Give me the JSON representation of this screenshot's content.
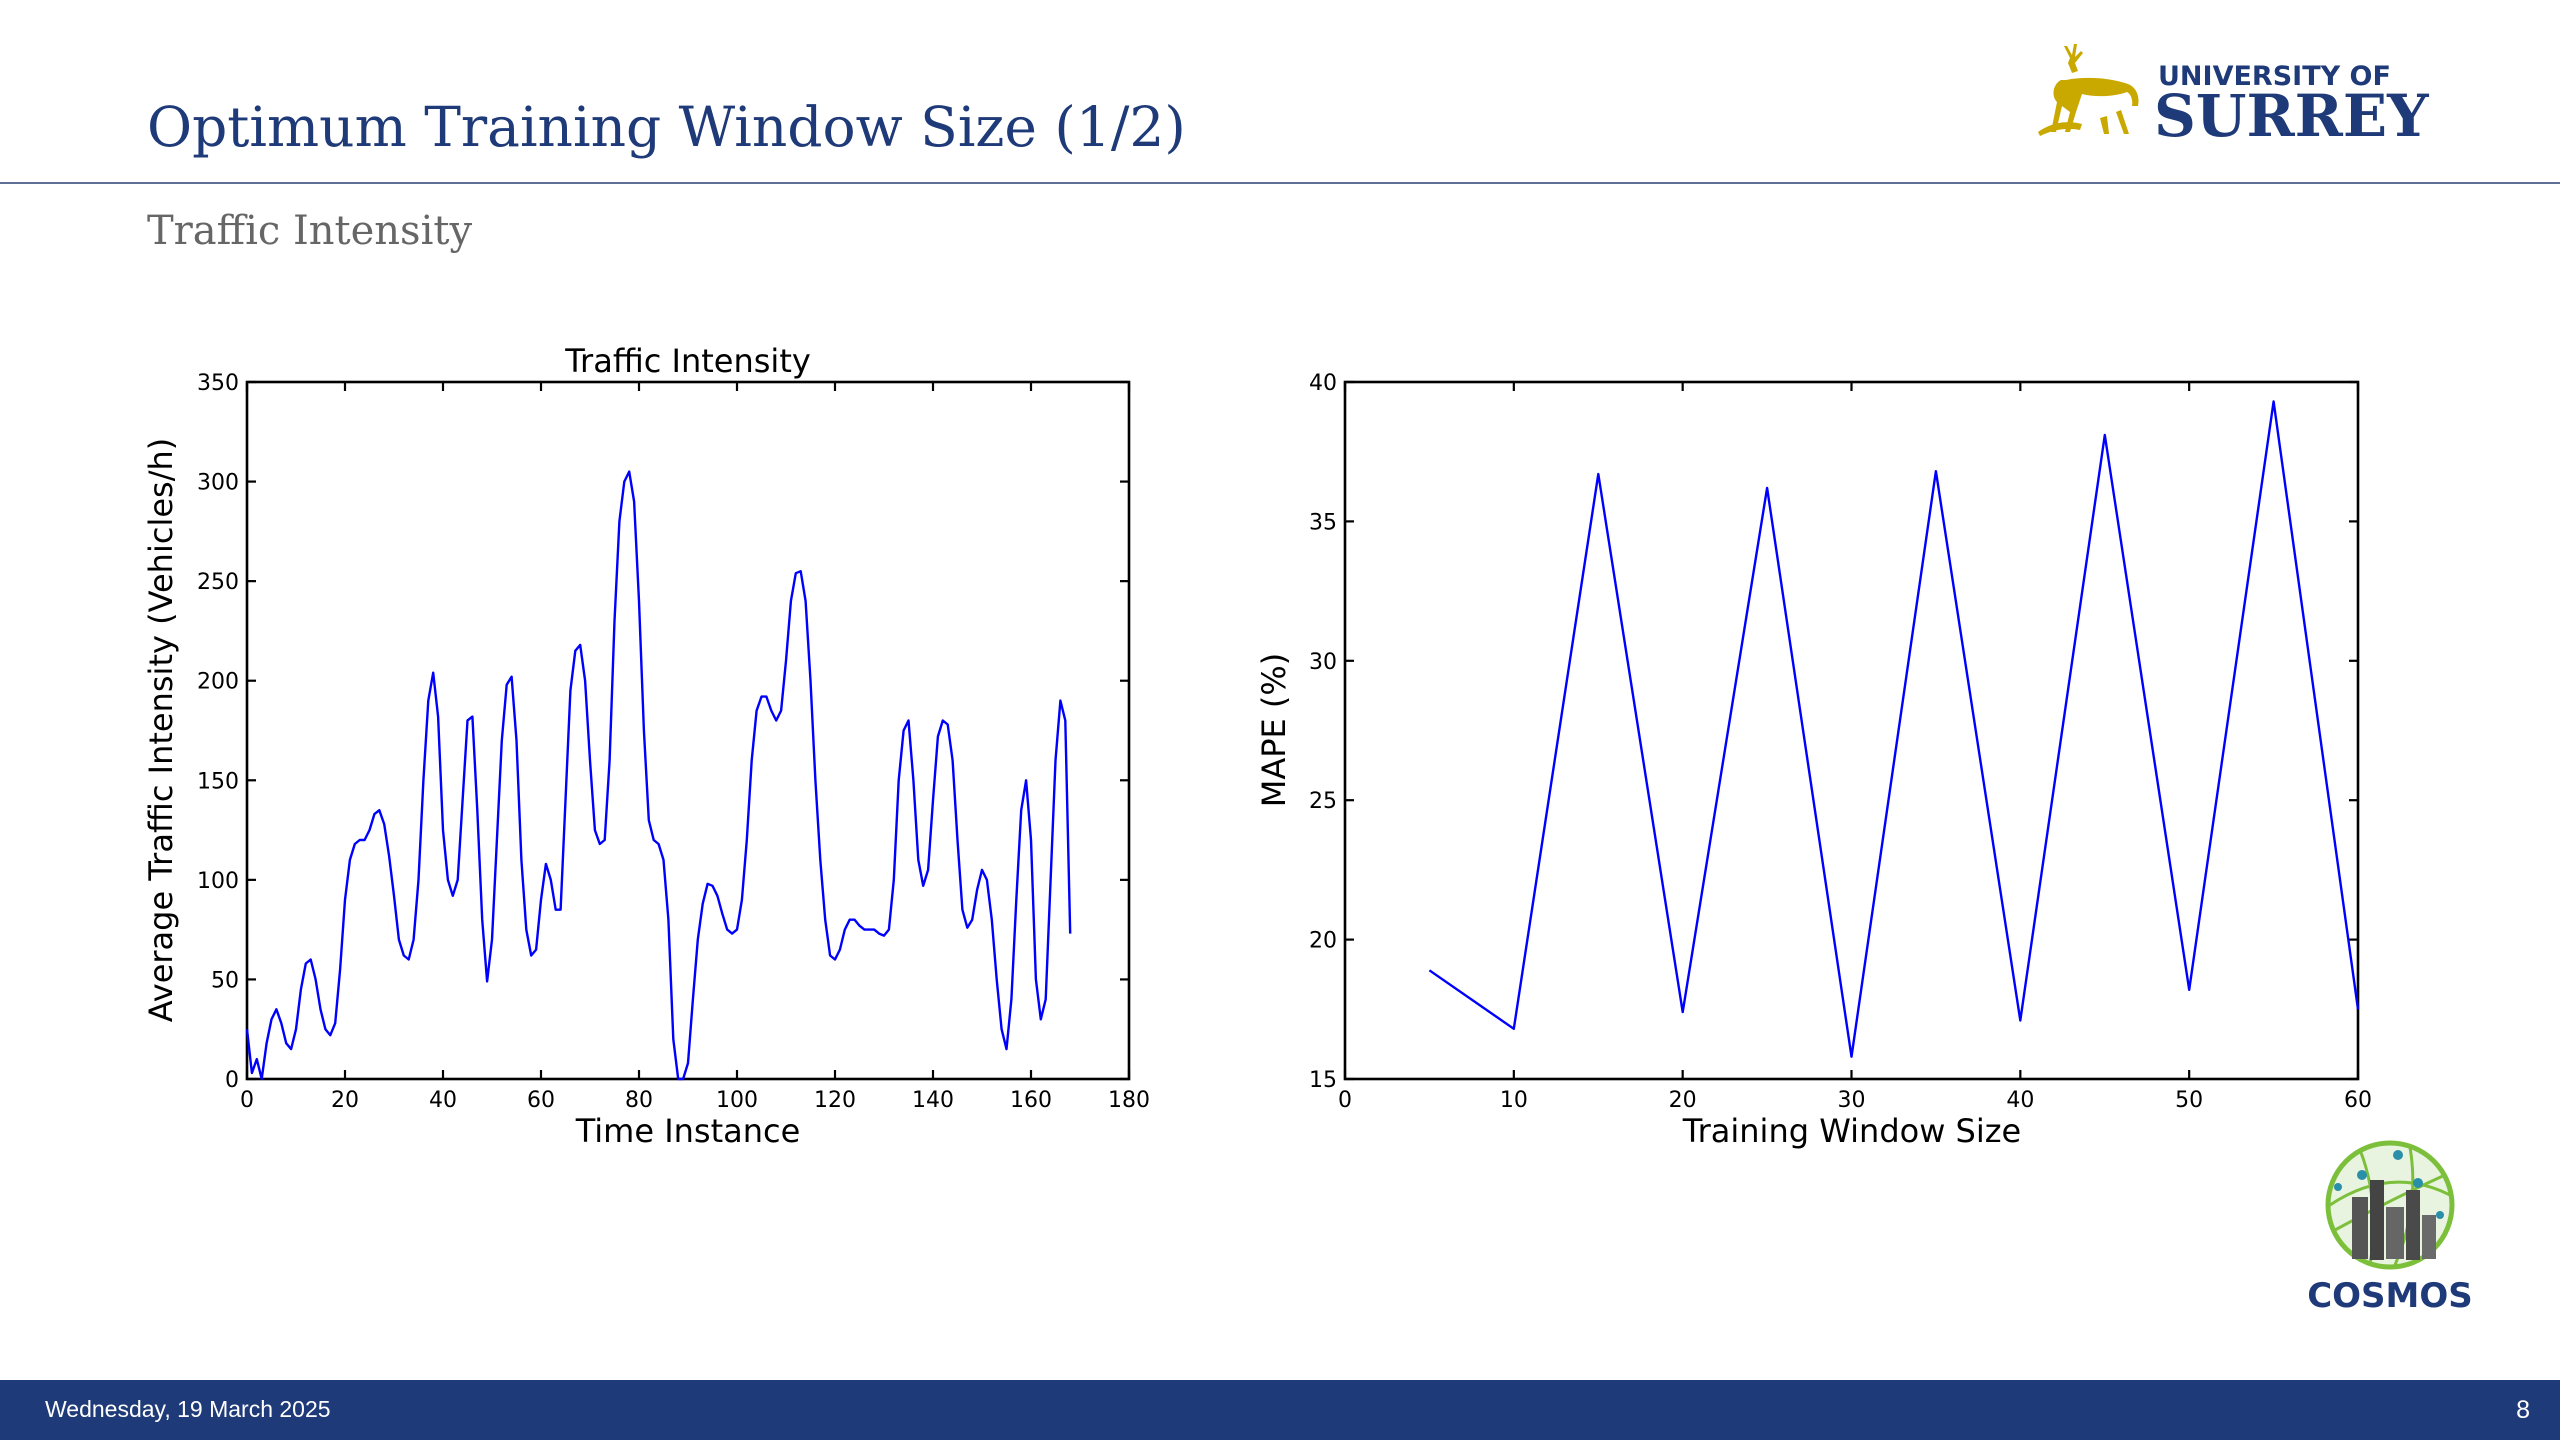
{
  "slide": {
    "title": "Optimum Training Window Size (1/2)",
    "subtitle": "Traffic Intensity"
  },
  "logos": {
    "surrey": {
      "line1": "UNIVERSITY OF",
      "line2": "SURREY",
      "color_blue": "#1f3a78",
      "color_gold": "#c9a800"
    },
    "cosmos": {
      "text": "COSMOS"
    }
  },
  "footer": {
    "date": "Wednesday, 19 March 2025",
    "page": "8",
    "bar_color": "#1f3a78"
  },
  "chart_data": [
    {
      "type": "line",
      "title": "Traffic Intensity",
      "xlabel": "Time Instance",
      "ylabel": "Average Traffic Intensity (Vehicles/h)",
      "xlim": [
        0,
        180
      ],
      "ylim": [
        0,
        350
      ],
      "xticks": [
        0,
        20,
        40,
        60,
        80,
        100,
        120,
        140,
        160,
        180
      ],
      "yticks": [
        0,
        50,
        100,
        150,
        200,
        250,
        300,
        350
      ],
      "line_color": "#0000ff",
      "series": [
        {
          "x": [
            0,
            1,
            2,
            3,
            4,
            5,
            6,
            7,
            8,
            9,
            10,
            11,
            12,
            13,
            14,
            15,
            16,
            17,
            18,
            19,
            20,
            21,
            22,
            23,
            24,
            25,
            26,
            27,
            28,
            29,
            30,
            31,
            32,
            33,
            34,
            35,
            36,
            37,
            38,
            39,
            40,
            41,
            42,
            43,
            44,
            45,
            46,
            47,
            48,
            49,
            50,
            51,
            52,
            53,
            54,
            55,
            56,
            57,
            58,
            59,
            60,
            61,
            62,
            63,
            64,
            65,
            66,
            67,
            68,
            69,
            70,
            71,
            72,
            73,
            74,
            75,
            76,
            77,
            78,
            79,
            80,
            81,
            82,
            83,
            84,
            85,
            86,
            87,
            88,
            89,
            90,
            91,
            92,
            93,
            94,
            95,
            96,
            97,
            98,
            99,
            100,
            101,
            102,
            103,
            104,
            105,
            106,
            107,
            108,
            109,
            110,
            111,
            112,
            113,
            114,
            115,
            116,
            117,
            118,
            119,
            120,
            121,
            122,
            123,
            124,
            125,
            126,
            127,
            128,
            129,
            130,
            131,
            132,
            133,
            134,
            135,
            136,
            137,
            138,
            139,
            140,
            141,
            142,
            143,
            144,
            145,
            146,
            147,
            148,
            149,
            150,
            151,
            152,
            153,
            154,
            155,
            156,
            157,
            158,
            159,
            160,
            161,
            162,
            163,
            164,
            165,
            166,
            167,
            168
          ],
          "y": [
            25,
            3,
            10,
            0,
            18,
            30,
            35,
            28,
            18,
            15,
            25,
            45,
            58,
            60,
            50,
            35,
            25,
            22,
            28,
            55,
            90,
            110,
            118,
            120,
            120,
            125,
            133,
            135,
            128,
            112,
            92,
            70,
            62,
            60,
            70,
            100,
            150,
            190,
            204,
            182,
            125,
            100,
            92,
            100,
            140,
            180,
            182,
            135,
            80,
            49,
            70,
            120,
            170,
            198,
            202,
            170,
            110,
            75,
            62,
            65,
            90,
            108,
            100,
            85,
            85,
            140,
            195,
            215,
            218,
            200,
            160,
            125,
            118,
            120,
            160,
            230,
            280,
            300,
            305,
            290,
            240,
            175,
            130,
            120,
            118,
            110,
            80,
            20,
            0,
            0,
            8,
            40,
            70,
            88,
            98,
            97,
            92,
            83,
            75,
            73,
            75,
            90,
            120,
            160,
            185,
            192,
            192,
            185,
            180,
            185,
            210,
            240,
            254,
            255,
            240,
            200,
            150,
            110,
            80,
            62,
            60,
            65,
            75,
            80,
            80,
            77,
            75,
            75,
            75,
            73,
            72,
            75,
            100,
            150,
            175,
            180,
            150,
            110,
            97,
            105,
            140,
            172,
            180,
            178,
            160,
            120,
            85,
            76,
            80,
            95,
            105,
            100,
            80,
            50,
            25,
            15,
            40,
            90,
            135,
            150,
            120,
            50,
            30,
            40,
            100,
            160,
            190,
            180,
            73
          ]
        }
      ]
    },
    {
      "type": "line",
      "title": "",
      "xlabel": "Training Window Size",
      "ylabel": "MAPE (%)",
      "xlim": [
        0,
        60
      ],
      "ylim": [
        15,
        40
      ],
      "xticks": [
        0,
        10,
        20,
        30,
        40,
        50,
        60
      ],
      "yticks": [
        15,
        20,
        25,
        30,
        35,
        40
      ],
      "line_color": "#0000ff",
      "series": [
        {
          "x": [
            5,
            10,
            15,
            20,
            25,
            30,
            35,
            40,
            45,
            50,
            55,
            60
          ],
          "y": [
            18.9,
            16.8,
            36.7,
            17.4,
            36.2,
            15.8,
            36.8,
            17.1,
            38.1,
            18.2,
            39.3,
            17.5
          ]
        }
      ]
    }
  ]
}
